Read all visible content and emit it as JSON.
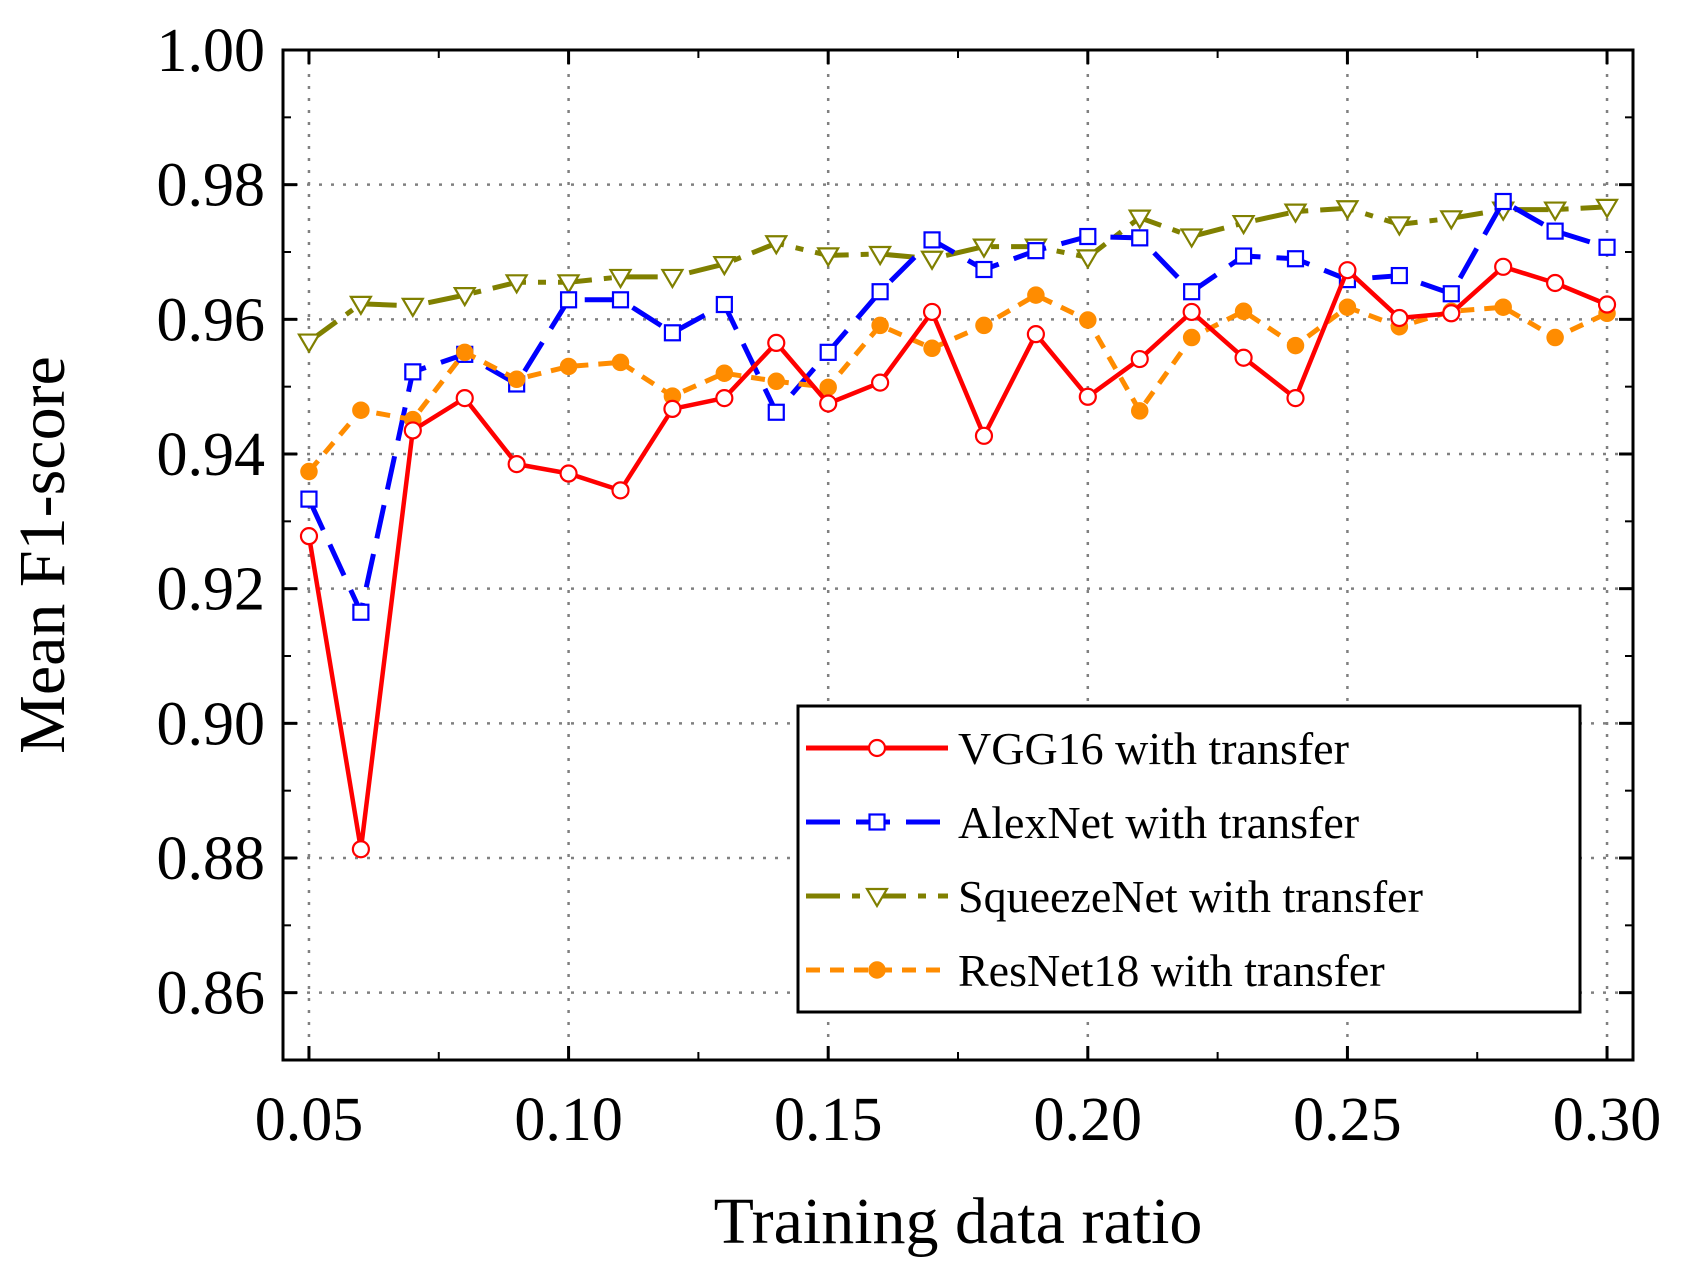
{
  "chart_data": {
    "type": "line",
    "title": "",
    "xlabel": "Training data ratio",
    "ylabel": "Mean F1-score",
    "xlim": [
      0.045,
      0.305
    ],
    "ylim": [
      0.85,
      1.0
    ],
    "xticks": [
      "0.05",
      "0.10",
      "0.15",
      "0.20",
      "0.25",
      "0.30"
    ],
    "xtick_values": [
      0.05,
      0.1,
      0.15,
      0.2,
      0.25,
      0.3
    ],
    "yticks": [
      "0.86",
      "0.88",
      "0.90",
      "0.92",
      "0.94",
      "0.96",
      "0.98",
      "1.00"
    ],
    "ytick_values": [
      0.86,
      0.88,
      0.9,
      0.92,
      0.94,
      0.96,
      0.98,
      1.0
    ],
    "grid": true,
    "legend_position": "bottom-right",
    "x": [
      0.05,
      0.06,
      0.07,
      0.08,
      0.09,
      0.1,
      0.11,
      0.12,
      0.13,
      0.14,
      0.15,
      0.16,
      0.17,
      0.18,
      0.19,
      0.2,
      0.21,
      0.22,
      0.23,
      0.24,
      0.25,
      0.26,
      0.27,
      0.28,
      0.29,
      0.3
    ],
    "series": [
      {
        "name": "VGG16 with transfer",
        "color": "#ff0000",
        "dash": "solid",
        "marker": "circle-open",
        "values": [
          0.9278,
          0.8813,
          0.9435,
          0.9483,
          0.9385,
          0.9371,
          0.9346,
          0.9467,
          0.9483,
          0.9565,
          0.9475,
          0.9506,
          0.9611,
          0.9427,
          0.9578,
          0.9485,
          0.9541,
          0.9611,
          0.9543,
          0.9483,
          0.9673,
          0.9602,
          0.9609,
          0.9678,
          0.9654,
          0.9622
        ]
      },
      {
        "name": "AlexNet with transfer",
        "color": "#0000ff",
        "dash": "dashed",
        "marker": "square-open",
        "values": [
          0.9333,
          0.9165,
          0.9522,
          0.9548,
          0.9504,
          0.9629,
          0.9629,
          0.958,
          0.9622,
          0.9462,
          0.9551,
          0.9641,
          0.9718,
          0.9674,
          0.9702,
          0.9723,
          0.9721,
          0.9641,
          0.9694,
          0.969,
          0.9659,
          0.9665,
          0.9638,
          0.9775,
          0.9731,
          0.9707
        ]
      },
      {
        "name": "SqueezeNet with transfer",
        "color": "#808000",
        "dash": "dashdot",
        "marker": "triangle-down-open",
        "values": [
          0.9567,
          0.9623,
          0.962,
          0.9636,
          0.9655,
          0.9655,
          0.9663,
          0.9663,
          0.9682,
          0.9713,
          0.9695,
          0.9697,
          0.969,
          0.9708,
          0.9708,
          0.9692,
          0.9751,
          0.9723,
          0.9743,
          0.976,
          0.9765,
          0.9741,
          0.975,
          0.9763,
          0.9763,
          0.9767
        ]
      },
      {
        "name": "ResNet18 with transfer",
        "color": "#ff8c00",
        "dash": "dotted",
        "marker": "circle-filled",
        "values": [
          0.9374,
          0.9465,
          0.9451,
          0.9551,
          0.9511,
          0.953,
          0.9536,
          0.9486,
          0.952,
          0.9508,
          0.9499,
          0.9591,
          0.9557,
          0.9591,
          0.9636,
          0.9599,
          0.9464,
          0.9573,
          0.9612,
          0.9561,
          0.9618,
          0.9589,
          0.9612,
          0.9618,
          0.9573,
          0.9609
        ]
      }
    ]
  }
}
